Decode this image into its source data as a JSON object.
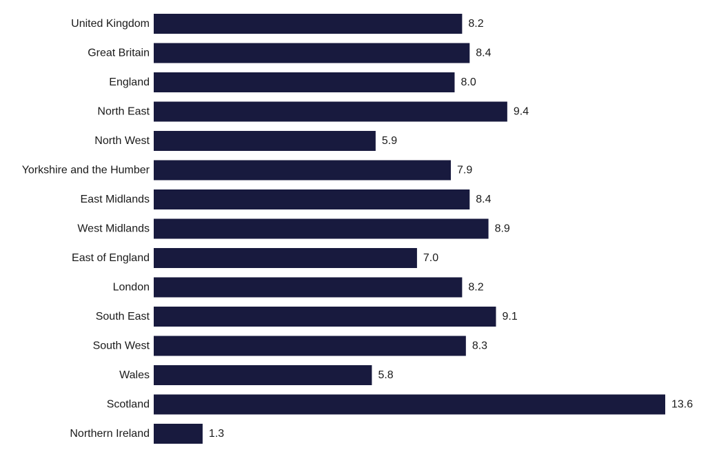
{
  "colors": {
    "bar": "#181a3e",
    "text": "#1a1a1a",
    "background": "#ffffff"
  },
  "chart_data": {
    "type": "bar",
    "orientation": "horizontal",
    "categories": [
      "United Kingdom",
      "Great Britain",
      "England",
      "North East",
      "North West",
      "Yorkshire and the Humber",
      "East Midlands",
      "West Midlands",
      "East of England",
      "London",
      "South East",
      "South West",
      "Wales",
      "Scotland",
      "Northern Ireland"
    ],
    "values": [
      8.2,
      8.4,
      8.0,
      9.4,
      5.9,
      7.9,
      8.4,
      8.9,
      7.0,
      8.2,
      9.1,
      8.3,
      5.8,
      13.6,
      1.3
    ],
    "value_labels": [
      "8.2",
      "8.4",
      "8.0",
      "9.4",
      "5.9",
      "7.9",
      "8.4",
      "8.9",
      "7.0",
      "8.2",
      "9.1",
      "8.3",
      "5.8",
      "13.6",
      "1.3"
    ],
    "xlim": [
      0,
      13.6
    ],
    "grid": false,
    "legend": "none",
    "title": "",
    "xlabel": "",
    "ylabel": ""
  }
}
